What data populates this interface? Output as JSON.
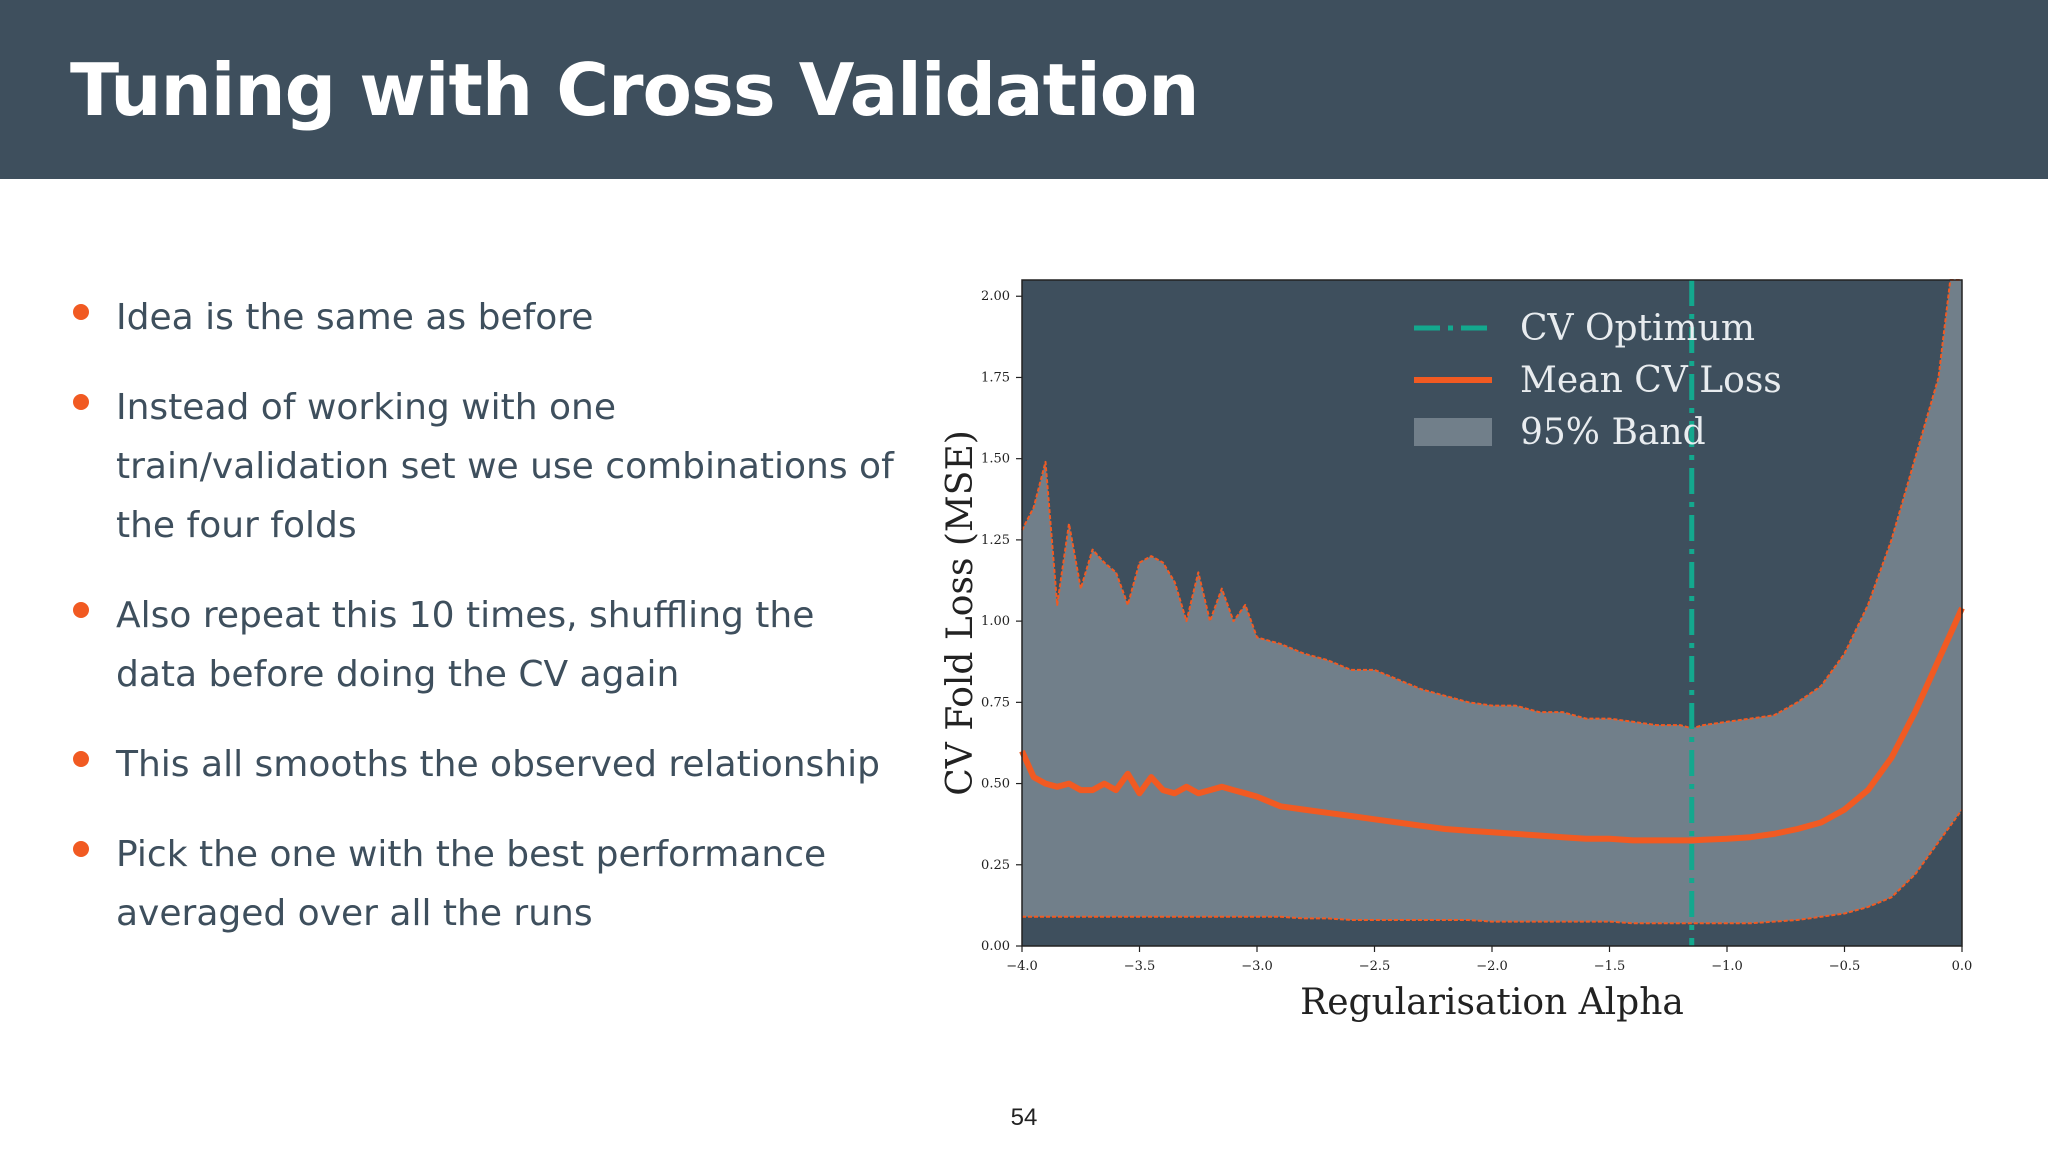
{
  "slide": {
    "title": "Tuning with Cross Validation",
    "page_number": "54",
    "bullets": [
      "Idea is the same as before",
      "Instead of working with one train/validation set we use combinations of the four folds",
      "Also repeat this 10 times, shuffling the data before doing the CV again",
      "This all smooths the observed relationship",
      "Pick the one with the best performance averaged over all the runs"
    ]
  },
  "colors": {
    "header_bg": "#3e4f5d",
    "plot_bg": "#3e4f5d",
    "band": "#717f8a",
    "mean_line": "#f15a22",
    "optimum_line": "#13a88e",
    "bullet": "#f15a22"
  },
  "chart_data": {
    "type": "line",
    "xlabel": "Regularisation Alpha",
    "ylabel": "CV Fold Loss (MSE)",
    "xlim": [
      -4.0,
      0.0
    ],
    "ylim": [
      0.0,
      2.05
    ],
    "xticks": [
      "−4.0",
      "−3.5",
      "−3.0",
      "−2.5",
      "−2.0",
      "−1.5",
      "−1.0",
      "−0.5",
      "0.0"
    ],
    "yticks": [
      "0.00",
      "0.25",
      "0.50",
      "0.75",
      "1.00",
      "1.25",
      "1.50",
      "1.75",
      "2.00"
    ],
    "grid": false,
    "legend_position": "top-right",
    "legend": [
      "CV Optimum",
      "Mean CV Loss",
      "95% Band"
    ],
    "optimum_x": -1.15,
    "series": [
      {
        "name": "95% Band",
        "x": [
          -4.0,
          -3.95,
          -3.9,
          -3.85,
          -3.8,
          -3.75,
          -3.7,
          -3.65,
          -3.6,
          -3.55,
          -3.5,
          -3.45,
          -3.4,
          -3.35,
          -3.3,
          -3.25,
          -3.2,
          -3.15,
          -3.1,
          -3.05,
          -3.0,
          -2.9,
          -2.8,
          -2.7,
          -2.6,
          -2.5,
          -2.4,
          -2.3,
          -2.2,
          -2.1,
          -2.0,
          -1.9,
          -1.8,
          -1.7,
          -1.6,
          -1.5,
          -1.4,
          -1.3,
          -1.2,
          -1.15,
          -1.1,
          -1.0,
          -0.9,
          -0.8,
          -0.7,
          -0.6,
          -0.5,
          -0.4,
          -0.3,
          -0.2,
          -0.1,
          -0.05,
          0.0
        ],
        "upper": [
          1.28,
          1.35,
          1.49,
          1.05,
          1.3,
          1.1,
          1.22,
          1.18,
          1.15,
          1.05,
          1.18,
          1.2,
          1.18,
          1.12,
          1.0,
          1.15,
          1.0,
          1.1,
          1.0,
          1.05,
          0.95,
          0.93,
          0.9,
          0.88,
          0.85,
          0.85,
          0.82,
          0.79,
          0.77,
          0.75,
          0.74,
          0.74,
          0.72,
          0.72,
          0.7,
          0.7,
          0.69,
          0.68,
          0.68,
          0.67,
          0.68,
          0.69,
          0.7,
          0.71,
          0.75,
          0.8,
          0.9,
          1.05,
          1.25,
          1.5,
          1.75,
          2.05,
          2.05
        ],
        "lower": [
          0.09,
          0.09,
          0.09,
          0.09,
          0.09,
          0.09,
          0.09,
          0.09,
          0.09,
          0.09,
          0.09,
          0.09,
          0.09,
          0.09,
          0.09,
          0.09,
          0.09,
          0.09,
          0.09,
          0.09,
          0.09,
          0.09,
          0.085,
          0.085,
          0.08,
          0.08,
          0.08,
          0.08,
          0.08,
          0.08,
          0.075,
          0.075,
          0.075,
          0.075,
          0.075,
          0.075,
          0.07,
          0.07,
          0.07,
          0.07,
          0.07,
          0.07,
          0.07,
          0.075,
          0.08,
          0.09,
          0.1,
          0.12,
          0.15,
          0.22,
          0.32,
          0.37,
          0.42
        ]
      },
      {
        "name": "Mean CV Loss",
        "x": [
          -4.0,
          -3.95,
          -3.9,
          -3.85,
          -3.8,
          -3.75,
          -3.7,
          -3.65,
          -3.6,
          -3.55,
          -3.5,
          -3.45,
          -3.4,
          -3.35,
          -3.3,
          -3.25,
          -3.2,
          -3.15,
          -3.1,
          -3.05,
          -3.0,
          -2.9,
          -2.8,
          -2.7,
          -2.6,
          -2.5,
          -2.4,
          -2.3,
          -2.2,
          -2.1,
          -2.0,
          -1.9,
          -1.8,
          -1.7,
          -1.6,
          -1.5,
          -1.4,
          -1.3,
          -1.2,
          -1.15,
          -1.1,
          -1.0,
          -0.9,
          -0.8,
          -0.7,
          -0.6,
          -0.5,
          -0.4,
          -0.3,
          -0.2,
          -0.1,
          -0.05,
          0.0
        ],
        "values": [
          0.6,
          0.52,
          0.5,
          0.49,
          0.5,
          0.48,
          0.48,
          0.5,
          0.48,
          0.53,
          0.47,
          0.52,
          0.48,
          0.47,
          0.49,
          0.47,
          0.48,
          0.49,
          0.48,
          0.47,
          0.46,
          0.43,
          0.42,
          0.41,
          0.4,
          0.39,
          0.38,
          0.37,
          0.36,
          0.355,
          0.35,
          0.345,
          0.34,
          0.335,
          0.33,
          0.33,
          0.325,
          0.325,
          0.325,
          0.325,
          0.327,
          0.33,
          0.335,
          0.345,
          0.36,
          0.38,
          0.42,
          0.48,
          0.58,
          0.72,
          0.88,
          0.96,
          1.04
        ]
      }
    ]
  }
}
